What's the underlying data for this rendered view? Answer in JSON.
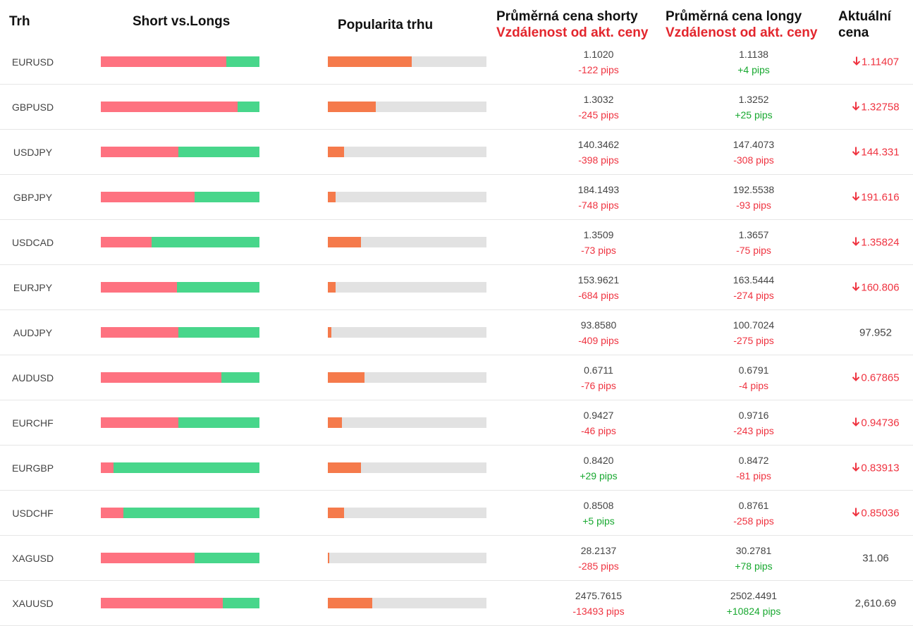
{
  "header": {
    "market": "Trh",
    "short_vs_longs": "Short vs.Longs",
    "popularity": "Popularita trhu",
    "avg_short": "Průměrná cena shorty",
    "avg_long": "Průměrná cena longy",
    "distance": "Vzdálenost od akt. ceny",
    "current_price": "Aktuální cena"
  },
  "colors": {
    "short": "#fe7280",
    "long": "#48d68b",
    "popularity_fill": "#f57a4b",
    "popularity_track": "#e2e2e2",
    "negative": "#ef3340",
    "positive": "#17a82f"
  },
  "rows": [
    {
      "pair": "EURUSD",
      "short_pct": 79,
      "popularity_pct": 53,
      "avg_short": "1.1020",
      "short_pips": "-122 pips",
      "short_pips_sign": "neg",
      "avg_long": "1.1138",
      "long_pips": "+4 pips",
      "long_pips_sign": "pos",
      "price": "1.11407",
      "price_dir": "down"
    },
    {
      "pair": "GBPUSD",
      "short_pct": 86,
      "popularity_pct": 30,
      "avg_short": "1.3032",
      "short_pips": "-245 pips",
      "short_pips_sign": "neg",
      "avg_long": "1.3252",
      "long_pips": "+25 pips",
      "long_pips_sign": "pos",
      "price": "1.32758",
      "price_dir": "down"
    },
    {
      "pair": "USDJPY",
      "short_pct": 49,
      "popularity_pct": 10,
      "avg_short": "140.3462",
      "short_pips": "-398 pips",
      "short_pips_sign": "neg",
      "avg_long": "147.4073",
      "long_pips": "-308 pips",
      "long_pips_sign": "neg",
      "price": "144.331",
      "price_dir": "down"
    },
    {
      "pair": "GBPJPY",
      "short_pct": 59,
      "popularity_pct": 5,
      "avg_short": "184.1493",
      "short_pips": "-748 pips",
      "short_pips_sign": "neg",
      "avg_long": "192.5538",
      "long_pips": "-93 pips",
      "long_pips_sign": "neg",
      "price": "191.616",
      "price_dir": "down"
    },
    {
      "pair": "USDCAD",
      "short_pct": 32,
      "popularity_pct": 21,
      "avg_short": "1.3509",
      "short_pips": "-73 pips",
      "short_pips_sign": "neg",
      "avg_long": "1.3657",
      "long_pips": "-75 pips",
      "long_pips_sign": "neg",
      "price": "1.35824",
      "price_dir": "down"
    },
    {
      "pair": "EURJPY",
      "short_pct": 48,
      "popularity_pct": 5,
      "avg_short": "153.9621",
      "short_pips": "-684 pips",
      "short_pips_sign": "neg",
      "avg_long": "163.5444",
      "long_pips": "-274 pips",
      "long_pips_sign": "neg",
      "price": "160.806",
      "price_dir": "down"
    },
    {
      "pair": "AUDJPY",
      "short_pct": 49,
      "popularity_pct": 2,
      "avg_short": "93.8580",
      "short_pips": "-409 pips",
      "short_pips_sign": "neg",
      "avg_long": "100.7024",
      "long_pips": "-275 pips",
      "long_pips_sign": "neg",
      "price": "97.952",
      "price_dir": "none"
    },
    {
      "pair": "AUDUSD",
      "short_pct": 76,
      "popularity_pct": 23,
      "avg_short": "0.6711",
      "short_pips": "-76 pips",
      "short_pips_sign": "neg",
      "avg_long": "0.6791",
      "long_pips": "-4 pips",
      "long_pips_sign": "neg",
      "price": "0.67865",
      "price_dir": "down"
    },
    {
      "pair": "EURCHF",
      "short_pct": 49,
      "popularity_pct": 9,
      "avg_short": "0.9427",
      "short_pips": "-46 pips",
      "short_pips_sign": "neg",
      "avg_long": "0.9716",
      "long_pips": "-243 pips",
      "long_pips_sign": "neg",
      "price": "0.94736",
      "price_dir": "down"
    },
    {
      "pair": "EURGBP",
      "short_pct": 8,
      "popularity_pct": 21,
      "avg_short": "0.8420",
      "short_pips": "+29 pips",
      "short_pips_sign": "pos",
      "avg_long": "0.8472",
      "long_pips": "-81 pips",
      "long_pips_sign": "neg",
      "price": "0.83913",
      "price_dir": "down"
    },
    {
      "pair": "USDCHF",
      "short_pct": 14,
      "popularity_pct": 10,
      "avg_short": "0.8508",
      "short_pips": "+5 pips",
      "short_pips_sign": "pos",
      "avg_long": "0.8761",
      "long_pips": "-258 pips",
      "long_pips_sign": "neg",
      "price": "0.85036",
      "price_dir": "down"
    },
    {
      "pair": "XAGUSD",
      "short_pct": 59,
      "popularity_pct": 1,
      "avg_short": "28.2137",
      "short_pips": "-285 pips",
      "short_pips_sign": "neg",
      "avg_long": "30.2781",
      "long_pips": "+78 pips",
      "long_pips_sign": "pos",
      "price": "31.06",
      "price_dir": "none"
    },
    {
      "pair": "XAUUSD",
      "short_pct": 77,
      "popularity_pct": 28,
      "avg_short": "2475.7615",
      "short_pips": "-13493 pips",
      "short_pips_sign": "neg",
      "avg_long": "2502.4491",
      "long_pips": "+10824 pips",
      "long_pips_sign": "pos",
      "price": "2,610.69",
      "price_dir": "none"
    }
  ]
}
